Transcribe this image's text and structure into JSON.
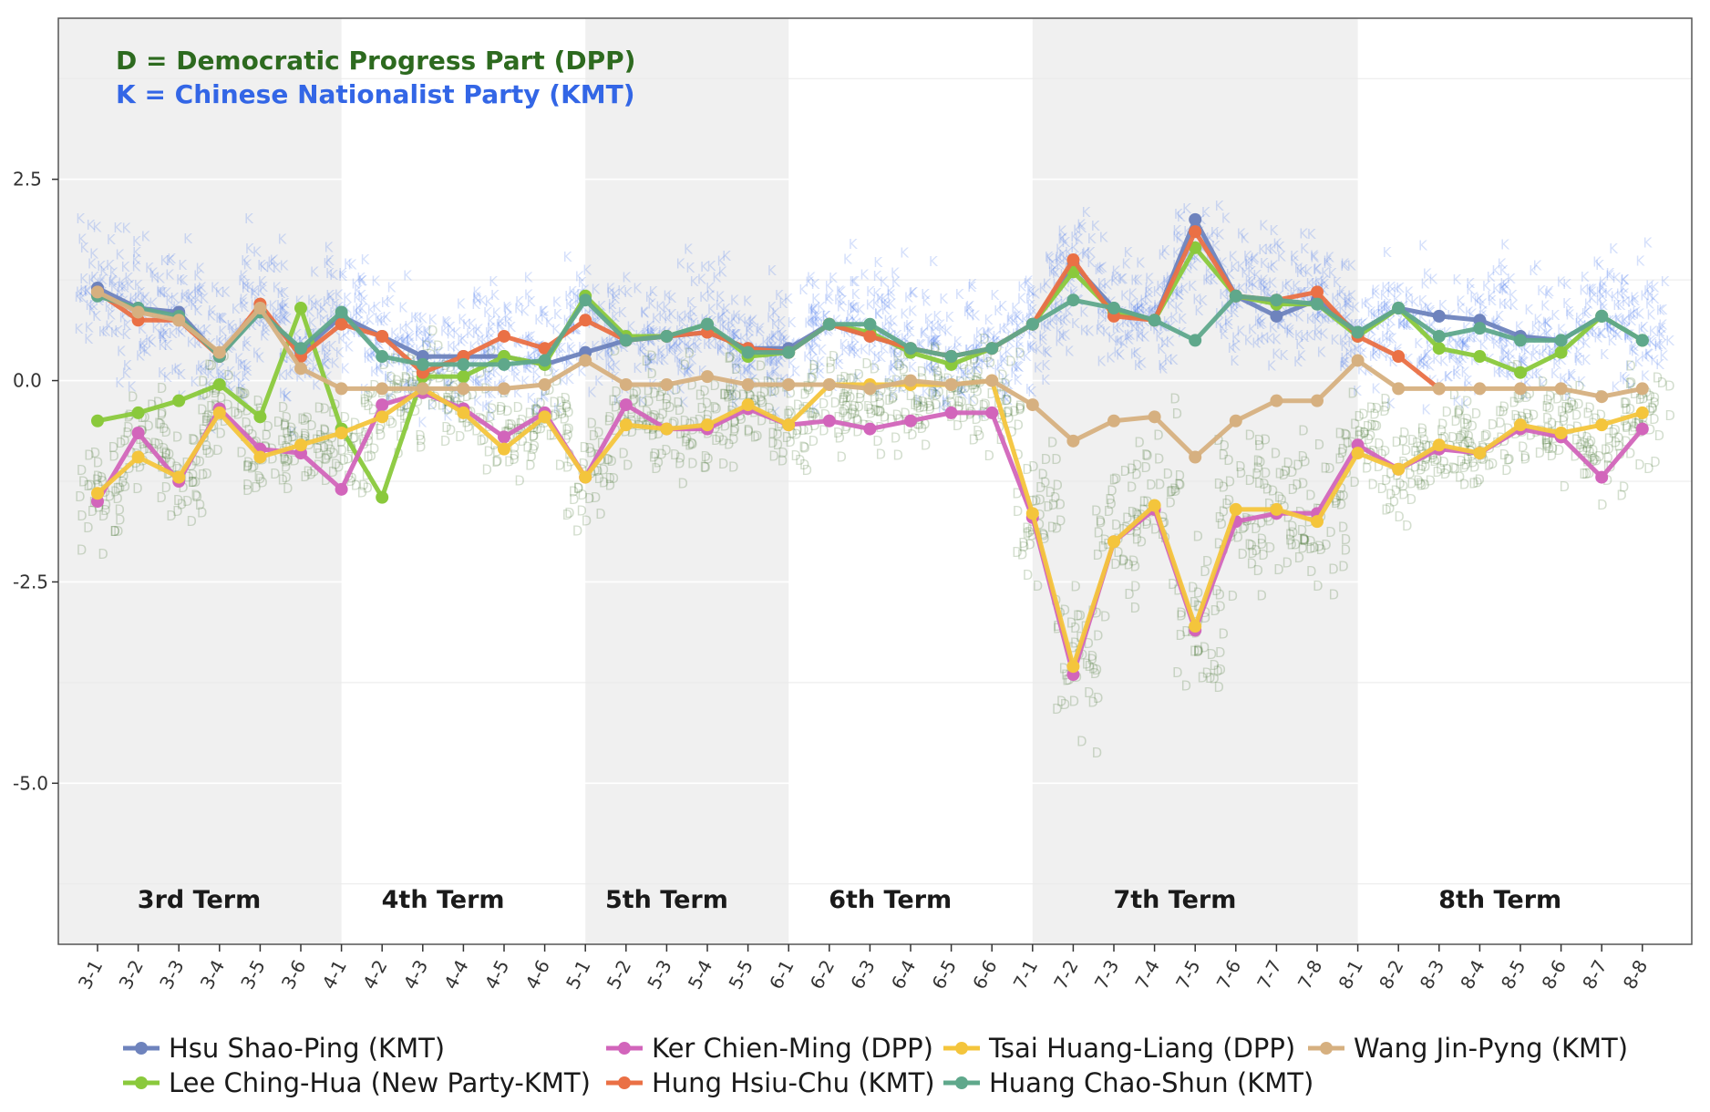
{
  "chart_data": {
    "type": "line",
    "x": [
      "3-1",
      "3-2",
      "3-3",
      "3-4",
      "3-5",
      "3-6",
      "4-1",
      "4-2",
      "4-3",
      "4-4",
      "4-5",
      "4-6",
      "5-1",
      "5-2",
      "5-3",
      "5-4",
      "5-5",
      "6-1",
      "6-2",
      "6-3",
      "6-4",
      "6-5",
      "6-6",
      "7-1",
      "7-2",
      "7-3",
      "7-4",
      "7-5",
      "7-6",
      "7-7",
      "7-8",
      "8-1",
      "8-2",
      "8-3",
      "8-4",
      "8-5",
      "8-6",
      "8-7",
      "8-8"
    ],
    "yticks": [
      2.5,
      0.0,
      -2.5,
      -5.0
    ],
    "ytick_labels": [
      "2.5",
      "0.0",
      "-2.5",
      "-5.0"
    ],
    "ylim": [
      -7.0,
      4.5
    ],
    "grid": true,
    "legend_position": "bottom",
    "annotations": [
      {
        "text": "D =  Democratic Progress Part (DPP)",
        "color": "#2d6a1f"
      },
      {
        "text": "K =  Chinese Nationalist Party (KMT)",
        "color": "#3366e6"
      }
    ],
    "terms": [
      {
        "label": "3rd Term",
        "start": "3-1",
        "end": "3-6",
        "shaded": true
      },
      {
        "label": "4th Term",
        "start": "4-1",
        "end": "4-6",
        "shaded": false
      },
      {
        "label": "5th Term",
        "start": "5-1",
        "end": "5-5",
        "shaded": true
      },
      {
        "label": "6th Term",
        "start": "6-1",
        "end": "6-6",
        "shaded": false
      },
      {
        "label": "7th Term",
        "start": "7-1",
        "end": "7-8",
        "shaded": true
      },
      {
        "label": "8th Term",
        "start": "8-1",
        "end": "8-8",
        "shaded": false
      }
    ],
    "cloud": {
      "kmt": {
        "letter": "K",
        "color": "#3f73ec"
      },
      "dpp": {
        "letter": "D",
        "color": "#356b22"
      }
    },
    "series": [
      {
        "name": "Hsu Shao-Ping (KMT)",
        "color": "#6e83bd",
        "values": [
          1.15,
          0.9,
          0.85,
          0.3,
          0.9,
          0.35,
          0.8,
          0.55,
          0.3,
          0.3,
          0.3,
          0.2,
          0.35,
          0.5,
          0.55,
          0.6,
          0.4,
          0.4,
          0.7,
          0.55,
          0.4,
          0.3,
          0.4,
          0.7,
          1.45,
          0.9,
          0.75,
          2.0,
          1.05,
          0.8,
          1.0,
          0.6,
          0.9,
          0.8,
          0.75,
          0.55,
          0.5,
          0.8,
          0.5
        ]
      },
      {
        "name": "Lee Ching-Hua (New Party-KMT)",
        "color": "#8ac93c",
        "values": [
          -0.5,
          -0.4,
          -0.25,
          -0.05,
          -0.45,
          0.9,
          -0.6,
          -1.45,
          0.05,
          0.05,
          0.3,
          0.2,
          1.05,
          0.55,
          0.55,
          0.7,
          0.3,
          0.35,
          0.7,
          0.6,
          0.35,
          0.2,
          0.4,
          0.7,
          1.35,
          0.85,
          0.75,
          1.65,
          1.05,
          0.95,
          0.95,
          0.55,
          0.9,
          0.4,
          0.3,
          0.1,
          0.35,
          0.8,
          0.5
        ]
      },
      {
        "name": "Ker Chien-Ming (DPP)",
        "color": "#d265bb",
        "values": [
          -1.5,
          -0.65,
          -1.25,
          -0.35,
          -0.85,
          -0.9,
          -1.35,
          -0.3,
          -0.15,
          -0.35,
          -0.7,
          -0.4,
          -1.2,
          -0.3,
          -0.6,
          -0.6,
          -0.35,
          -0.55,
          -0.5,
          -0.6,
          -0.5,
          -0.4,
          -0.4,
          -1.7,
          -3.65,
          -2.0,
          -1.6,
          -3.1,
          -1.75,
          -1.65,
          -1.65,
          -0.8,
          -1.1,
          -0.85,
          -0.9,
          -0.6,
          -0.7,
          -1.2,
          -0.6
        ]
      },
      {
        "name": "Hung Hsiu-Chu (KMT)",
        "color": "#ea7045",
        "values": [
          1.1,
          0.75,
          0.75,
          0.3,
          0.95,
          0.3,
          0.7,
          0.55,
          0.1,
          0.3,
          0.55,
          0.4,
          0.75,
          0.5,
          0.55,
          0.6,
          0.4,
          0.35,
          0.7,
          0.55,
          0.4,
          0.3,
          0.4,
          0.7,
          1.5,
          0.8,
          0.75,
          1.85,
          1.05,
          1.0,
          1.1,
          0.55,
          0.3,
          -0.1,
          null,
          null,
          null,
          null,
          null
        ]
      },
      {
        "name": "Tsai Huang-Liang (DPP)",
        "color": "#f4c53c",
        "values": [
          -1.4,
          -0.95,
          -1.2,
          -0.4,
          -0.95,
          -0.8,
          -0.65,
          -0.45,
          -0.1,
          -0.4,
          -0.85,
          -0.45,
          -1.2,
          -0.55,
          -0.6,
          -0.55,
          -0.3,
          -0.55,
          -0.05,
          -0.05,
          -0.05,
          -0.05,
          0.0,
          -1.65,
          -3.55,
          -2.0,
          -1.55,
          -3.05,
          -1.6,
          -1.6,
          -1.75,
          -0.9,
          -1.1,
          -0.8,
          -0.9,
          -0.55,
          -0.65,
          -0.55,
          -0.4
        ]
      },
      {
        "name": "Huang Chao-Shun (KMT)",
        "color": "#5fa88b",
        "values": [
          1.05,
          0.9,
          0.8,
          0.3,
          0.85,
          0.4,
          0.85,
          0.3,
          0.2,
          0.2,
          0.2,
          0.25,
          1.0,
          0.5,
          0.55,
          0.7,
          0.35,
          0.35,
          0.7,
          0.7,
          0.4,
          0.3,
          0.4,
          0.7,
          1.0,
          0.9,
          0.75,
          0.5,
          1.05,
          1.0,
          0.95,
          0.6,
          0.9,
          0.55,
          0.65,
          0.5,
          0.5,
          0.8,
          0.5
        ]
      },
      {
        "name": "Wang Jin-Pyng (KMT)",
        "color": "#d6b080",
        "values": [
          1.1,
          0.85,
          0.75,
          0.35,
          0.9,
          0.15,
          -0.1,
          -0.1,
          -0.1,
          -0.1,
          -0.1,
          -0.05,
          0.25,
          -0.05,
          -0.05,
          0.05,
          -0.05,
          -0.05,
          -0.05,
          -0.1,
          0.0,
          -0.05,
          0.0,
          -0.3,
          -0.75,
          -0.5,
          -0.45,
          -0.95,
          -0.5,
          -0.25,
          -0.25,
          0.25,
          -0.1,
          -0.1,
          -0.1,
          -0.1,
          -0.1,
          -0.2,
          -0.1
        ]
      }
    ]
  }
}
